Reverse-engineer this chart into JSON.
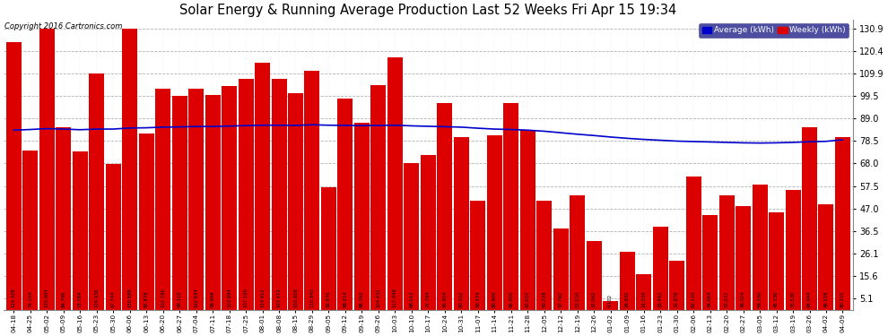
{
  "title": "Solar Energy & Running Average Production Last 52 Weeks Fri Apr 15 19:34",
  "copyright": "Copyright 2016 Cartronics.com",
  "ylabel_right_ticks": [
    5.1,
    15.6,
    26.1,
    36.5,
    47.0,
    57.5,
    68.0,
    78.5,
    89.0,
    99.5,
    109.9,
    120.4,
    130.9
  ],
  "bar_color": "#dd0000",
  "avg_color": "#0000cc",
  "bg_color": "#ffffff",
  "plot_bg_color": "#ffffff",
  "categories": [
    "04-18",
    "04-25",
    "05-02",
    "05-09",
    "05-16",
    "05-23",
    "05-30",
    "06-06",
    "06-13",
    "06-20",
    "06-27",
    "07-04",
    "07-11",
    "07-18",
    "07-25",
    "08-01",
    "08-08",
    "08-15",
    "08-29",
    "09-05",
    "09-12",
    "09-19",
    "09-26",
    "10-03",
    "10-10",
    "10-17",
    "10-24",
    "10-31",
    "11-07",
    "11-14",
    "11-21",
    "11-28",
    "12-05",
    "12-12",
    "12-19",
    "12-26",
    "01-02",
    "01-09",
    "01-16",
    "01-23",
    "01-30",
    "02-06",
    "02-13",
    "02-20",
    "02-27",
    "03-05",
    "03-12",
    "03-19",
    "03-26",
    "04-02",
    "04-09"
  ],
  "weekly_values": [
    124.328,
    74.144,
    130.904,
    84.796,
    73.784,
    109.936,
    67.744,
    130.588,
    81.878,
    102.786,
    99.318,
    102.634,
    99.968,
    103.894,
    107.19,
    114.912,
    107.472,
    100.808,
    110.94,
    56.976,
    98.214,
    86.762,
    104.432,
    117.448,
    68.012,
    71.794,
    95.954,
    80.102,
    50.574,
    80.9,
    96.0,
    83.652,
    50.728,
    37.792,
    53.21,
    32.062,
    4.102,
    26.932,
    16.534,
    38.442,
    22.878,
    62.12,
    44.064,
    53.072,
    48.024,
    58.15,
    45.136,
    55.536,
    84.944,
    49.128,
    80.31
  ],
  "avg_values": [
    83.5,
    83.8,
    84.2,
    84.0,
    83.7,
    84.0,
    84.0,
    84.5,
    84.6,
    84.9,
    85.0,
    85.2,
    85.2,
    85.4,
    85.6,
    85.8,
    85.8,
    85.7,
    86.0,
    85.8,
    85.7,
    85.6,
    85.7,
    85.8,
    85.5,
    85.3,
    85.1,
    84.9,
    84.4,
    84.0,
    83.8,
    83.5,
    83.0,
    82.3,
    81.6,
    81.0,
    80.3,
    79.7,
    79.2,
    78.8,
    78.4,
    78.2,
    78.0,
    77.8,
    77.6,
    77.5,
    77.6,
    77.8,
    78.1,
    78.3,
    79.0
  ],
  "legend_avg_label": "Average (kWh)",
  "legend_weekly_label": "Weekly (kWh)"
}
